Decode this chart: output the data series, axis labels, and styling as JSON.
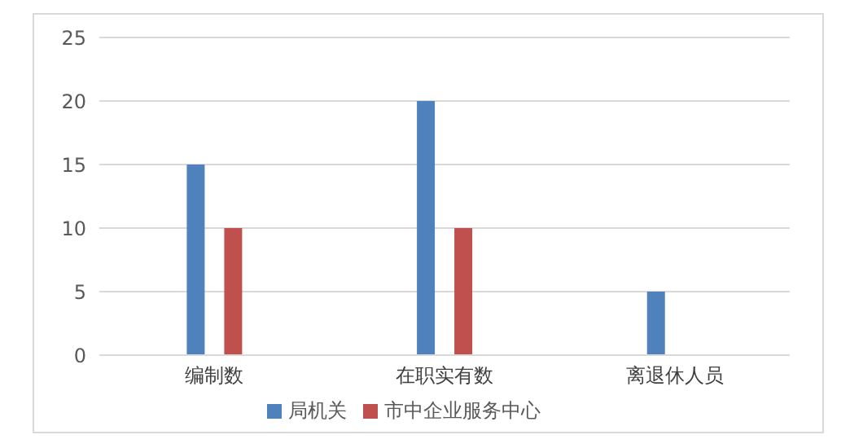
{
  "chart_data": {
    "type": "bar",
    "categories": [
      "编制数",
      "在职实有数",
      "离退休人员"
    ],
    "series": [
      {
        "name": "局机关",
        "color": "#4f81bd",
        "values": [
          15,
          20,
          5
        ]
      },
      {
        "name": "市中企业服务中心",
        "color": "#c0504d",
        "values": [
          10,
          10,
          0
        ]
      }
    ],
    "ylim": [
      0,
      25
    ],
    "yticks": [
      0,
      5,
      10,
      15,
      20,
      25
    ],
    "grid": "y",
    "legend": "bottom"
  }
}
